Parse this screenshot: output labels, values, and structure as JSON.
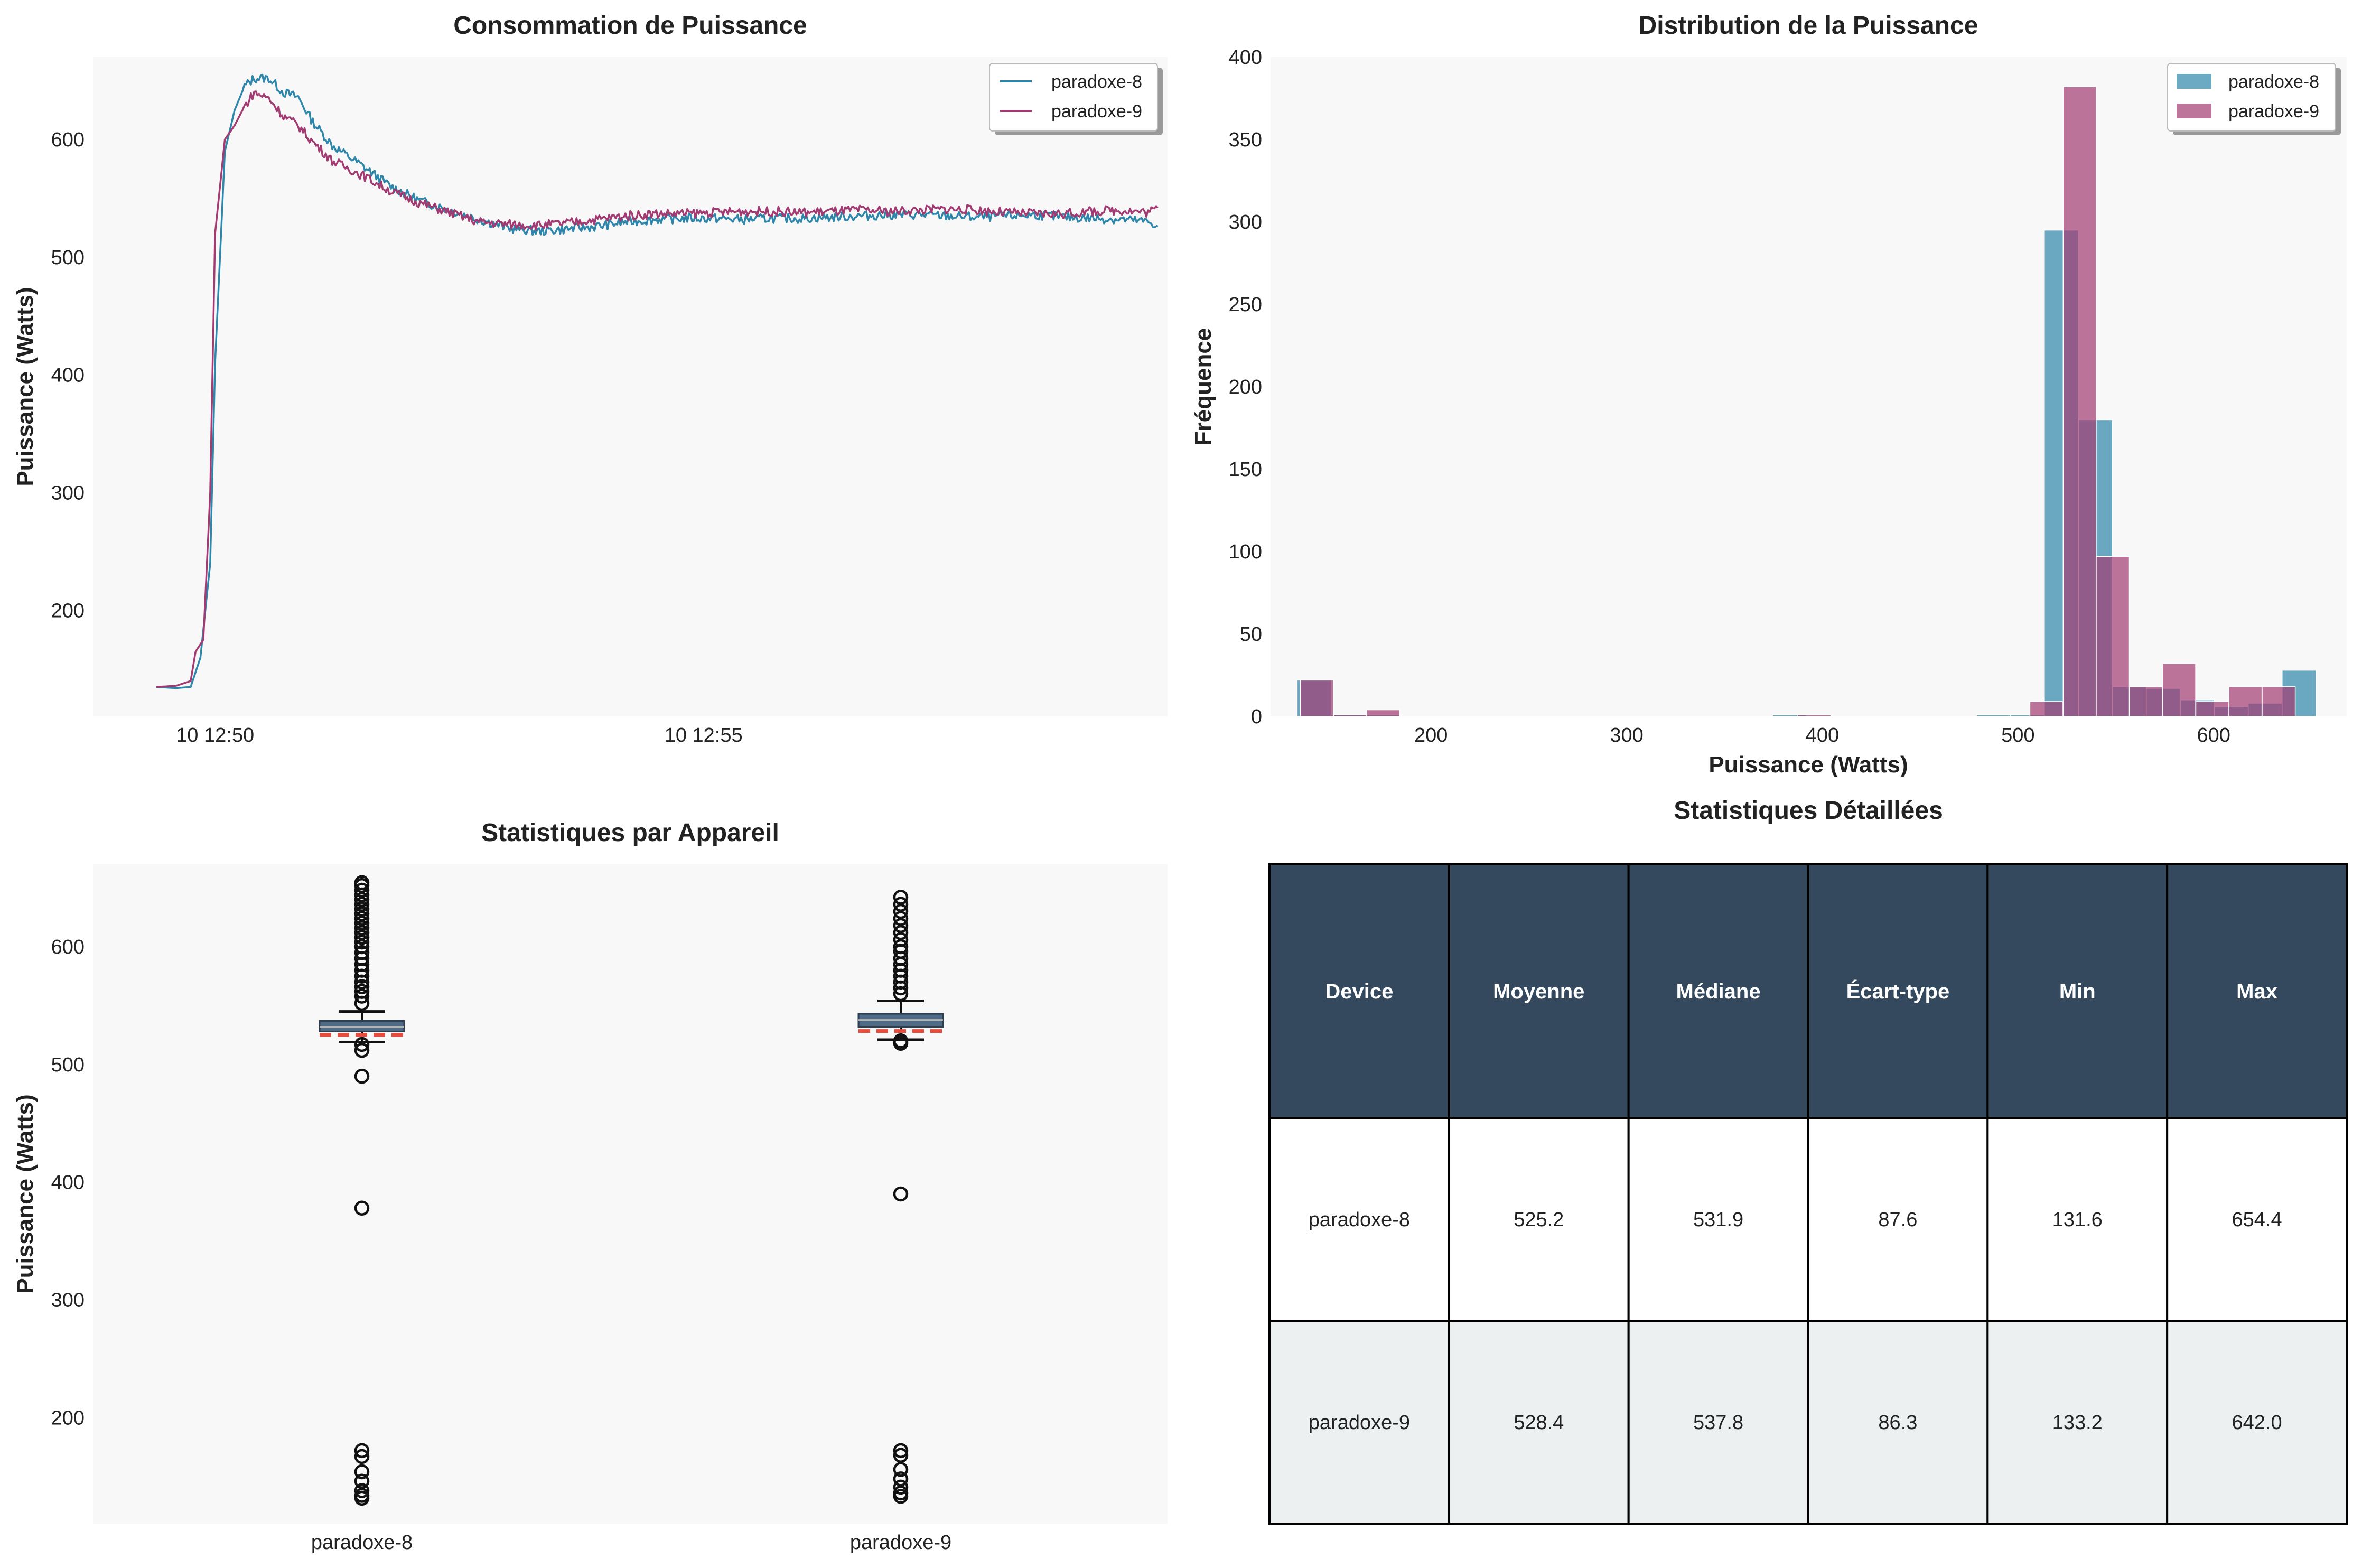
{
  "colors": {
    "series_a": "#2e86ab",
    "series_b": "#a23b72",
    "table_header": "#34495e",
    "table_alt_row": "#ecf0f1",
    "panel_bg": "#f8f8f8",
    "box_fill": "#4f6a85",
    "mean_line": "#e74c3c"
  },
  "chart_data": [
    {
      "type": "line",
      "title": "Consommation de Puissance",
      "xlabel": "",
      "ylabel": "Puissance (Watts)",
      "x_ticks": [
        "10 12:50",
        "10 12:55"
      ],
      "y_ticks": [
        200,
        300,
        400,
        500,
        600
      ],
      "ylim": [
        110,
        670
      ],
      "x_range_minutes": [
        -1.25,
        9.75
      ],
      "legend_position": "upper-right",
      "grid": false,
      "series": [
        {
          "name": "paradoxe-8",
          "color": "#2e86ab",
          "points": [
            [
              -0.6,
              135
            ],
            [
              -0.4,
              134
            ],
            [
              -0.25,
              135
            ],
            [
              -0.15,
              160
            ],
            [
              -0.05,
              240
            ],
            [
              0.0,
              410
            ],
            [
              0.05,
              500
            ],
            [
              0.1,
              590
            ],
            [
              0.2,
              625
            ],
            [
              0.3,
              645
            ],
            [
              0.4,
              652
            ],
            [
              0.55,
              652
            ],
            [
              0.7,
              640
            ],
            [
              0.85,
              636
            ],
            [
              1.0,
              615
            ],
            [
              1.2,
              595
            ],
            [
              1.5,
              578
            ],
            [
              1.8,
              560
            ],
            [
              2.1,
              548
            ],
            [
              2.4,
              540
            ],
            [
              2.7,
              532
            ],
            [
              3.0,
              525
            ],
            [
              3.3,
              522
            ],
            [
              3.6,
              524
            ],
            [
              3.9,
              526
            ],
            [
              4.2,
              530
            ],
            [
              4.5,
              532
            ],
            [
              4.8,
              533
            ],
            [
              5.1,
              533
            ],
            [
              5.4,
              532
            ],
            [
              5.7,
              533
            ],
            [
              6.0,
              533
            ],
            [
              6.3,
              534
            ],
            [
              6.6,
              535
            ],
            [
              6.9,
              536
            ],
            [
              7.2,
              536
            ],
            [
              7.5,
              535
            ],
            [
              7.8,
              534
            ],
            [
              8.1,
              535
            ],
            [
              8.4,
              536
            ],
            [
              8.7,
              534
            ],
            [
              9.0,
              533
            ],
            [
              9.3,
              532
            ],
            [
              9.55,
              530
            ],
            [
              9.65,
              527
            ]
          ]
        },
        {
          "name": "paradoxe-9",
          "color": "#a23b72",
          "points": [
            [
              -0.6,
              135
            ],
            [
              -0.4,
              136
            ],
            [
              -0.25,
              140
            ],
            [
              -0.2,
              165
            ],
            [
              -0.12,
              175
            ],
            [
              -0.05,
              300
            ],
            [
              0.0,
              520
            ],
            [
              0.1,
              600
            ],
            [
              0.2,
              612
            ],
            [
              0.3,
              628
            ],
            [
              0.4,
              640
            ],
            [
              0.55,
              635
            ],
            [
              0.7,
              620
            ],
            [
              0.85,
              612
            ],
            [
              1.0,
              598
            ],
            [
              1.2,
              582
            ],
            [
              1.5,
              570
            ],
            [
              1.8,
              556
            ],
            [
              2.1,
              546
            ],
            [
              2.4,
              538
            ],
            [
              2.7,
              530
            ],
            [
              3.0,
              528
            ],
            [
              3.3,
              527
            ],
            [
              3.6,
              529
            ],
            [
              3.9,
              532
            ],
            [
              4.2,
              535
            ],
            [
              4.5,
              537
            ],
            [
              4.8,
              537
            ],
            [
              5.1,
              538
            ],
            [
              5.4,
              539
            ],
            [
              5.7,
              539
            ],
            [
              6.0,
              538
            ],
            [
              6.3,
              539
            ],
            [
              6.6,
              540
            ],
            [
              6.9,
              539
            ],
            [
              7.2,
              540
            ],
            [
              7.5,
              541
            ],
            [
              7.8,
              540
            ],
            [
              8.1,
              538
            ],
            [
              8.4,
              537
            ],
            [
              8.7,
              537
            ],
            [
              9.0,
              539
            ],
            [
              9.3,
              540
            ],
            [
              9.55,
              538
            ],
            [
              9.65,
              542
            ]
          ]
        }
      ]
    },
    {
      "type": "bar",
      "subtype": "histogram",
      "title": "Distribution de la Puissance",
      "xlabel": "Puissance (Watts)",
      "ylabel": "Fréquence",
      "x_ticks": [
        200,
        300,
        400,
        500,
        600
      ],
      "y_ticks": [
        0,
        50,
        100,
        150,
        200,
        250,
        300,
        350,
        400
      ],
      "xlim": [
        118,
        668
      ],
      "ylim": [
        0,
        400
      ],
      "legend_position": "upper-right",
      "series": [
        {
          "name": "paradoxe-8",
          "color": "#2e86ab",
          "bins": [
            [
              131.6,
              22
            ],
            [
              148.9,
              1
            ],
            [
              166.3,
              1
            ],
            [
              183.6,
              0
            ],
            [
              201.0,
              0
            ],
            [
              218.4,
              0
            ],
            [
              235.7,
              0
            ],
            [
              253.1,
              0
            ],
            [
              270.4,
              0
            ],
            [
              287.8,
              0
            ],
            [
              305.2,
              0
            ],
            [
              322.5,
              0
            ],
            [
              339.9,
              0
            ],
            [
              357.3,
              0
            ],
            [
              374.6,
              1
            ],
            [
              392.0,
              0
            ],
            [
              409.3,
              0
            ],
            [
              426.7,
              0
            ],
            [
              444.1,
              0
            ],
            [
              461.4,
              0
            ],
            [
              478.8,
              1
            ],
            [
              496.2,
              1
            ],
            [
              513.5,
              295
            ],
            [
              530.9,
              180
            ],
            [
              548.2,
              18
            ],
            [
              565.6,
              17
            ],
            [
              583.0,
              10
            ],
            [
              600.3,
              6
            ],
            [
              617.7,
              8
            ],
            [
              635.0,
              28
            ]
          ],
          "bin_width": 17.4
        },
        {
          "name": "paradoxe-9",
          "color": "#a23b72",
          "bins": [
            [
              133.2,
              22
            ],
            [
              150.2,
              1
            ],
            [
              167.1,
              4
            ],
            [
              184.1,
              0
            ],
            [
              201.0,
              0
            ],
            [
              218.0,
              0
            ],
            [
              234.9,
              0
            ],
            [
              251.9,
              0
            ],
            [
              268.8,
              0
            ],
            [
              285.8,
              0
            ],
            [
              302.7,
              0
            ],
            [
              319.7,
              0
            ],
            [
              336.6,
              0
            ],
            [
              353.6,
              0
            ],
            [
              370.5,
              0
            ],
            [
              387.5,
              1
            ],
            [
              404.4,
              0
            ],
            [
              421.4,
              0
            ],
            [
              438.3,
              0
            ],
            [
              455.3,
              0
            ],
            [
              472.2,
              0
            ],
            [
              489.2,
              0
            ],
            [
              506.1,
              9
            ],
            [
              523.1,
              382
            ],
            [
              540.0,
              97
            ],
            [
              557.0,
              18
            ],
            [
              573.9,
              32
            ],
            [
              590.9,
              9
            ],
            [
              607.8,
              18
            ],
            [
              624.8,
              18
            ]
          ],
          "bin_width": 16.9
        }
      ]
    },
    {
      "type": "box",
      "title": "Statistiques par Appareil",
      "ylabel": "Puissance (Watts)",
      "categories": [
        "paradoxe-8",
        "paradoxe-9"
      ],
      "y_ticks": [
        200,
        300,
        400,
        500,
        600
      ],
      "ylim": [
        110,
        670
      ],
      "boxes": [
        {
          "name": "paradoxe-8",
          "q1": 528,
          "median": 531.9,
          "q3": 537,
          "mean": 525.2,
          "whisker_low": 519,
          "whisker_high": 545,
          "outliers": [
            131.6,
            134,
            138,
            146,
            154,
            167,
            172,
            378,
            490,
            512,
            517,
            552,
            558,
            562,
            566,
            570,
            575,
            580,
            585,
            590,
            595,
            600,
            604,
            608,
            612,
            616,
            620,
            624,
            628,
            632,
            636,
            640,
            644,
            648,
            652,
            654.4
          ]
        },
        {
          "name": "paradoxe-9",
          "q1": 532,
          "median": 537.8,
          "q3": 543,
          "mean": 528.4,
          "whisker_low": 521,
          "whisker_high": 554,
          "outliers": [
            133.2,
            136,
            141,
            148,
            156,
            168,
            172,
            390,
            518,
            520,
            560,
            565,
            570,
            575,
            580,
            585,
            590,
            596,
            600,
            606,
            612,
            618,
            624,
            630,
            636,
            642.0
          ]
        }
      ]
    },
    {
      "type": "table",
      "title": "Statistiques Détaillées",
      "columns": [
        "Device",
        "Moyenne",
        "Médiane",
        "Écart-type",
        "Min",
        "Max"
      ],
      "rows": [
        [
          "paradoxe-8",
          "525.2",
          "531.9",
          "87.6",
          "131.6",
          "654.4"
        ],
        [
          "paradoxe-9",
          "528.4",
          "537.8",
          "86.3",
          "133.2",
          "642.0"
        ]
      ]
    }
  ]
}
